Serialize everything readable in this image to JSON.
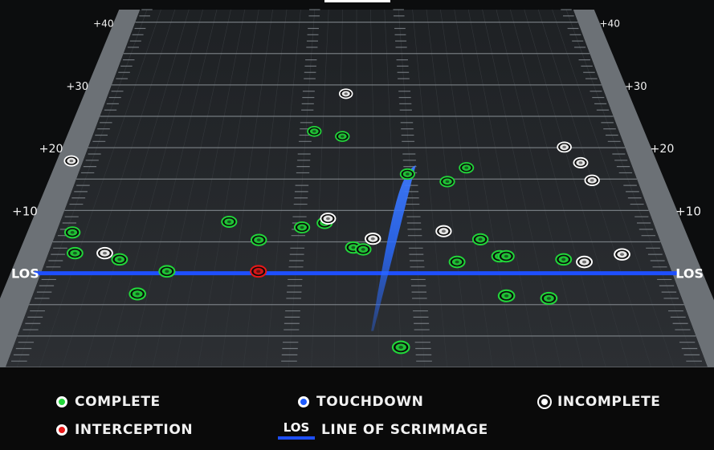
{
  "chart_data": {
    "type": "scatter",
    "title": "",
    "xlabel": "",
    "ylabel": "",
    "y_unit": "yards from line of scrimmage",
    "y_ticks": [
      "+10",
      "+20",
      "+30",
      "+40"
    ],
    "x_range": [
      -1,
      1
    ],
    "y_range": [
      -15,
      42
    ],
    "los_label": "LOS",
    "series": [
      {
        "name": "COMPLETE",
        "color": "#22d63a",
        "points": [
          [
            -0.88,
            6.5
          ],
          [
            -0.85,
            3.2
          ],
          [
            -0.71,
            2.2
          ],
          [
            -0.56,
            0.3
          ],
          [
            -0.63,
            -3.3
          ],
          [
            -0.4,
            8.2
          ],
          [
            -0.3,
            5.3
          ],
          [
            -0.17,
            7.3
          ],
          [
            -0.1,
            8.0
          ],
          [
            -0.01,
            4.1
          ],
          [
            0.02,
            3.8
          ],
          [
            -0.15,
            22.6
          ],
          [
            -0.05,
            21.8
          ],
          [
            0.12,
            -11.8
          ],
          [
            0.17,
            15.8
          ],
          [
            0.3,
            14.6
          ],
          [
            0.37,
            16.8
          ],
          [
            0.38,
            5.4
          ],
          [
            0.3,
            1.8
          ],
          [
            0.43,
            2.7
          ],
          [
            0.45,
            2.7
          ],
          [
            0.62,
            2.2
          ],
          [
            0.43,
            -3.6
          ],
          [
            0.55,
            -4.0
          ]
        ]
      },
      {
        "name": "INCOMPLETE",
        "color": "#ffffff",
        "points": [
          [
            -0.97,
            17.9
          ],
          [
            -0.76,
            3.2
          ],
          [
            -0.04,
            28.6
          ],
          [
            -0.09,
            8.7
          ],
          [
            0.05,
            5.5
          ],
          [
            0.27,
            6.7
          ],
          [
            0.72,
            20.1
          ],
          [
            0.76,
            17.6
          ],
          [
            0.78,
            14.8
          ],
          [
            0.68,
            1.8
          ],
          [
            0.8,
            3.0
          ]
        ]
      },
      {
        "name": "INTERCEPTION",
        "color": "#e81818",
        "points": [
          [
            -0.29,
            0.3
          ]
        ]
      },
      {
        "name": "TOUCHDOWN",
        "color": "#1e5bff",
        "points": []
      }
    ],
    "touchdown_path": [
      [
        0.04,
        -9.2
      ],
      [
        0.12,
        8.0
      ],
      [
        0.16,
        15.8
      ],
      [
        0.2,
        17.2
      ]
    ]
  },
  "legend": {
    "complete": "COMPLETE",
    "touchdown": "TOUCHDOWN",
    "incomplete": "INCOMPLETE",
    "interception": "INTERCEPTION",
    "los_badge": "LOS",
    "los_text": "LINE OF SCRIMMAGE"
  },
  "colors": {
    "complete": "#22d63a",
    "touchdown": "#1e5bff",
    "incomplete": "#ffffff",
    "interception": "#e81818",
    "los_line": "#1e4fff",
    "field": "#26292c"
  }
}
